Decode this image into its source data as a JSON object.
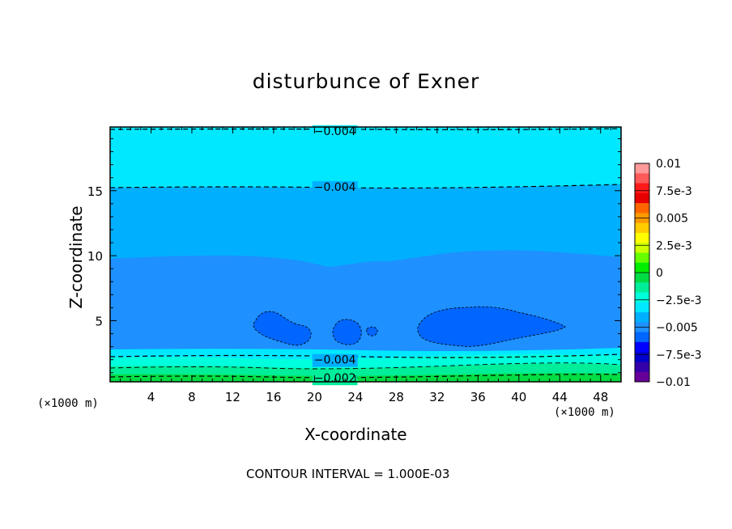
{
  "chart_data": {
    "type": "heatmap",
    "title": "disturbunce of Exner",
    "xlabel": "X-coordinate",
    "ylabel": "Z-coordinate",
    "x_unit_note": "(×1000 m)",
    "x_unit_note_right": "(×1000 m)",
    "xlim": [
      0,
      50
    ],
    "ylim": [
      0.3,
      19.9
    ],
    "xticks": [
      4,
      8,
      12,
      16,
      20,
      24,
      28,
      32,
      36,
      40,
      44,
      48
    ],
    "yticks": [
      5,
      10,
      15
    ],
    "footer": "CONTOUR INTERVAL = 1.000E-03",
    "colorbar": {
      "labels": [
        "0.01",
        "7.5e-3",
        "0.005",
        "2.5e-3",
        "0",
        "−2.5e-3",
        "−0.005",
        "−7.5e-3",
        "−0.01"
      ],
      "colors": [
        "#ff9a9a",
        "#ff5a5a",
        "#ff1a1a",
        "#e60000",
        "#ff6600",
        "#ff9900",
        "#ffcc00",
        "#ffff00",
        "#ccff00",
        "#66ff00",
        "#00ee00",
        "#00dd44",
        "#00ee99",
        "#00ffdd",
        "#00e8ff",
        "#00b0ff",
        "#1e90ff",
        "#0066ff",
        "#0000ff",
        "#0000cc",
        "#3300aa",
        "#660099"
      ]
    },
    "filled_levels": [
      {
        "range": [
          -0.004,
          -0.003
        ],
        "color": "#00e8ff",
        "region": "z above ~15.3"
      },
      {
        "range": [
          -0.005,
          -0.004
        ],
        "color": "#00b0ff",
        "region": "z ~10 to 15.3"
      },
      {
        "range": [
          -0.006,
          -0.005
        ],
        "color": "#1e90ff",
        "region": "z ~2.6 to 10"
      },
      {
        "range": [
          -0.007,
          -0.006
        ],
        "color": "#0066ff",
        "region": "cells near z 3-6"
      },
      {
        "range": [
          -0.004,
          -0.003
        ],
        "color": "#00e8ff",
        "region": "z ~1.9 to 2.6"
      },
      {
        "range": [
          -0.003,
          -0.002
        ],
        "color": "#00ffdd",
        "region": "z ~1.2 to 1.9"
      },
      {
        "range": [
          -0.002,
          -0.001
        ],
        "color": "#00ee99",
        "region": "z ~0.5 to 1.2"
      },
      {
        "range": [
          -0.001,
          0
        ],
        "color": "#00dd44",
        "region": "z < 0.5"
      }
    ],
    "contour_labels": [
      {
        "text": "−0.004",
        "x": 22.0,
        "z": 19.6
      },
      {
        "text": "−0.004",
        "x": 22.0,
        "z": 15.3
      },
      {
        "text": "−0.004",
        "x": 22.0,
        "z": 2.0
      },
      {
        "text": "−0.002",
        "x": 22.0,
        "z": 0.6
      }
    ]
  }
}
